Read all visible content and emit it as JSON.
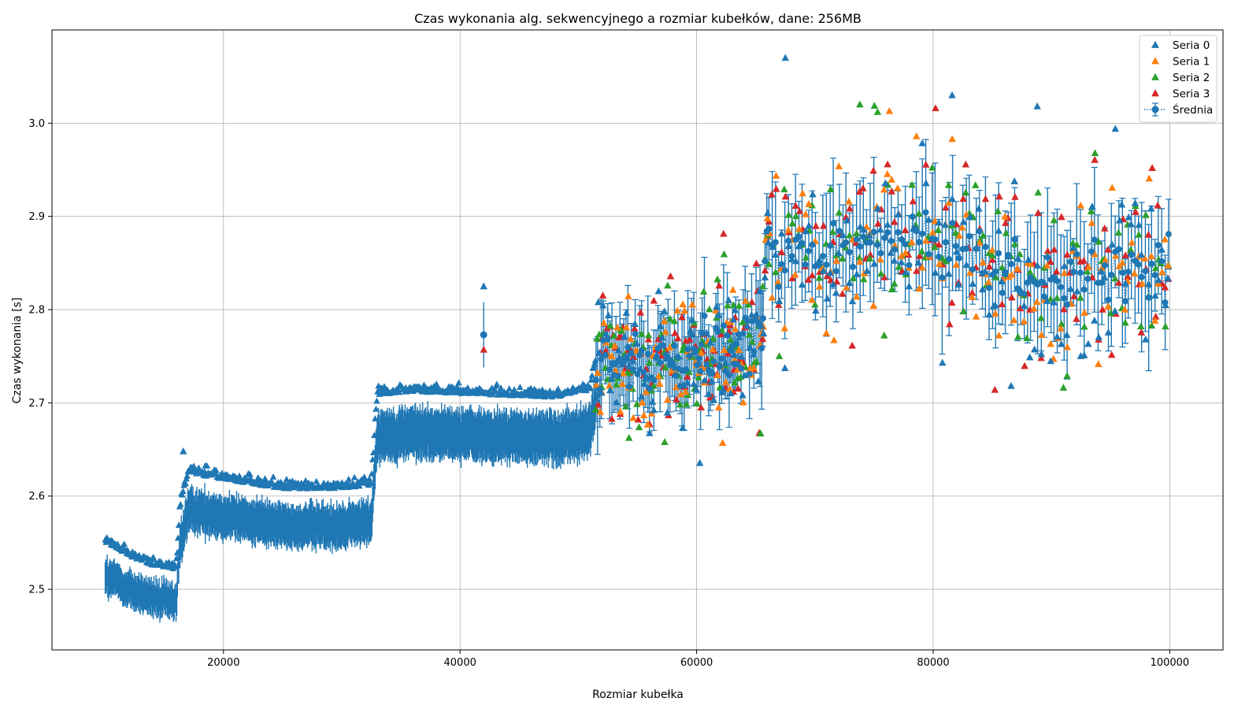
{
  "chart_data": {
    "type": "scatter",
    "title": "Czas wykonania alg. sekwencyjnego a rozmiar kubełków, dane: 256MB",
    "xlabel": "Rozmiar kubełka",
    "ylabel": "Czas wykonania [s]",
    "xlim": [
      5500,
      104500
    ],
    "ylim": [
      2.435,
      3.1
    ],
    "x_ticks": [
      20000,
      40000,
      60000,
      80000,
      100000
    ],
    "x_tick_labels": [
      "20000",
      "40000",
      "60000",
      "80000",
      "100000"
    ],
    "y_ticks": [
      2.5,
      2.6,
      2.7,
      2.8,
      2.9,
      3.0
    ],
    "y_tick_labels": [
      "2.5",
      "2.6",
      "2.7",
      "2.8",
      "2.9",
      "3.0"
    ],
    "grid": true,
    "legend_position": "top-right",
    "colors": {
      "seria0": "#1f77b4",
      "seria1": "#ff7f0e",
      "seria2": "#2ca02c",
      "seria3": "#d62728",
      "mean": "#1f77b4"
    },
    "legend": [
      {
        "name": "Seria 0",
        "marker": "triangle",
        "color": "#1f77b4"
      },
      {
        "name": "Seria 1",
        "marker": "triangle",
        "color": "#ff7f0e"
      },
      {
        "name": "Seria 2",
        "marker": "triangle",
        "color": "#2ca02c"
      },
      {
        "name": "Seria 3",
        "marker": "triangle",
        "color": "#d62728"
      },
      {
        "name": "Średnia",
        "marker": "circle-errorbar-dotted",
        "color": "#1f77b4"
      }
    ],
    "x_range": [
      10000,
      100000
    ],
    "mean_profile": [
      {
        "x": 10000,
        "y": 2.515
      },
      {
        "x": 12000,
        "y": 2.5
      },
      {
        "x": 14000,
        "y": 2.49
      },
      {
        "x": 16000,
        "y": 2.485
      },
      {
        "x": 16300,
        "y": 2.545
      },
      {
        "x": 17000,
        "y": 2.585
      },
      {
        "x": 20000,
        "y": 2.578
      },
      {
        "x": 25000,
        "y": 2.568
      },
      {
        "x": 30000,
        "y": 2.568
      },
      {
        "x": 32500,
        "y": 2.572
      },
      {
        "x": 33000,
        "y": 2.665
      },
      {
        "x": 36000,
        "y": 2.668
      },
      {
        "x": 42000,
        "y": 2.665
      },
      {
        "x": 48000,
        "y": 2.662
      },
      {
        "x": 51000,
        "y": 2.67
      },
      {
        "x": 52000,
        "y": 2.74
      },
      {
        "x": 56000,
        "y": 2.745
      },
      {
        "x": 60000,
        "y": 2.75
      },
      {
        "x": 64000,
        "y": 2.765
      },
      {
        "x": 65500,
        "y": 2.78
      },
      {
        "x": 66000,
        "y": 2.87
      },
      {
        "x": 70000,
        "y": 2.86
      },
      {
        "x": 76000,
        "y": 2.875
      },
      {
        "x": 80000,
        "y": 2.87
      },
      {
        "x": 84000,
        "y": 2.86
      },
      {
        "x": 88000,
        "y": 2.835
      },
      {
        "x": 92000,
        "y": 2.835
      },
      {
        "x": 96000,
        "y": 2.84
      },
      {
        "x": 100000,
        "y": 2.845
      }
    ],
    "outliers": [
      {
        "x": 42000,
        "y": 2.825,
        "series": "Seria 0"
      },
      {
        "x": 42000,
        "y": 2.773,
        "series": "Średnia"
      },
      {
        "x": 42000,
        "y": 2.757,
        "series": "Seria 3"
      },
      {
        "x": 67500,
        "y": 3.07,
        "series": "Seria 0"
      },
      {
        "x": 81600,
        "y": 3.03,
        "series": "Seria 0"
      },
      {
        "x": 88800,
        "y": 3.018,
        "series": "Seria 0"
      },
      {
        "x": 73800,
        "y": 3.02,
        "series": "Seria 2"
      },
      {
        "x": 76300,
        "y": 3.013,
        "series": "Seria 1"
      },
      {
        "x": 80200,
        "y": 3.016,
        "series": "Seria 3"
      },
      {
        "x": 75300,
        "y": 3.012,
        "series": "Seria 2"
      },
      {
        "x": 95400,
        "y": 2.994,
        "series": "Seria 0"
      },
      {
        "x": 16600,
        "y": 2.648,
        "series": "Seria 0"
      },
      {
        "x": 62200,
        "y": 2.657,
        "series": "Seria 1"
      },
      {
        "x": 57300,
        "y": 2.658,
        "series": "Seria 2"
      },
      {
        "x": 10500,
        "y": 2.552,
        "series": "Seria 0"
      }
    ]
  }
}
